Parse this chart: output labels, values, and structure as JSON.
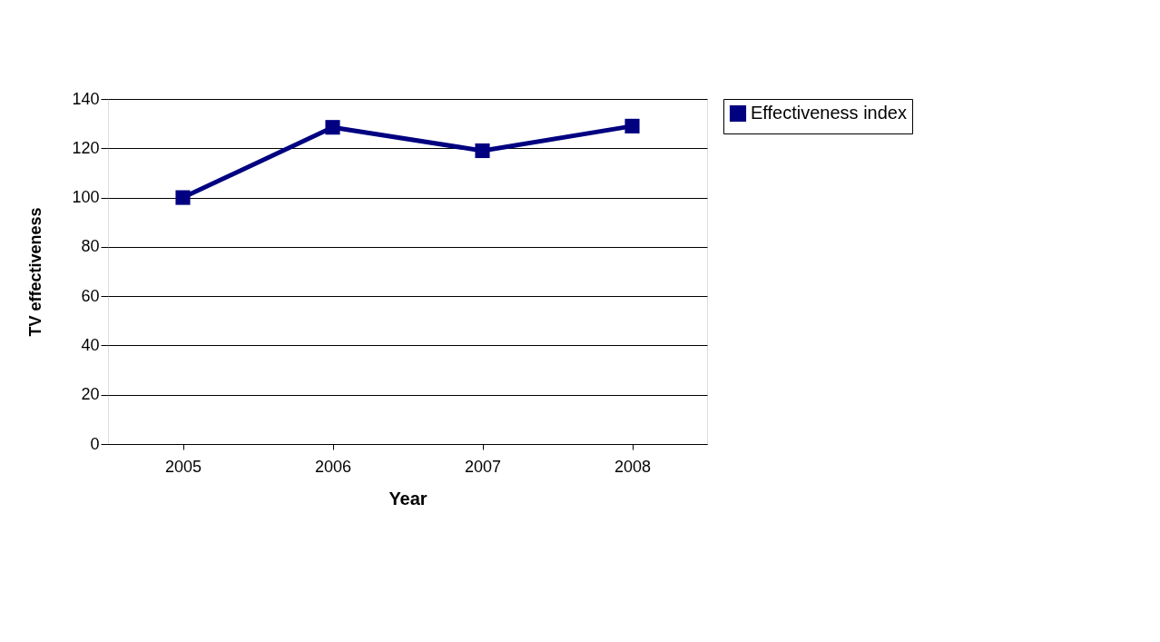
{
  "chart_data": {
    "type": "line",
    "xlabel": "Year",
    "ylabel": "TV effectiveness",
    "categories": [
      "2005",
      "2006",
      "2007",
      "2008"
    ],
    "series": [
      {
        "name": "Effectiveness index",
        "color": "#000080",
        "values": [
          100,
          128.5,
          119,
          129
        ]
      }
    ],
    "ylim": [
      0,
      140
    ],
    "yticks": [
      0,
      20,
      40,
      60,
      80,
      100,
      120,
      140
    ],
    "grid": "y",
    "legend": "right",
    "marker": "square",
    "line_style": "solid"
  }
}
